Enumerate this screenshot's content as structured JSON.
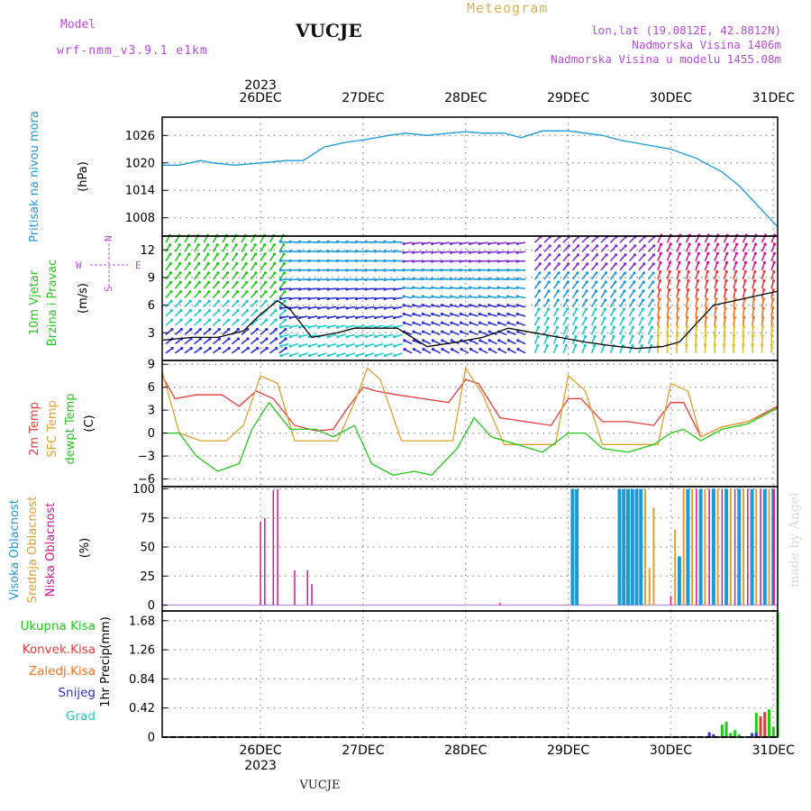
{
  "header": {
    "model_label": "Model",
    "model_name": "wrf-nmm_v3.9.1  e1km",
    "station": "VUCJE",
    "meteogram": "Meteogram",
    "lonlat": "lon,lat (19.0812E, 42.8812N)",
    "elevation": "Nadmorska Visina 1406m",
    "model_elevation": "Nadmorska Visina u modelu 1455.08m"
  },
  "footer": {
    "station": "VUCJE",
    "watermark": "made by Angel"
  },
  "colors": {
    "pressure": "#1c9ad8",
    "temp2m": "#e83a3a",
    "sfc": "#e0a030",
    "dewpt": "#22c81a",
    "high_cloud": "#1c9ad8",
    "mid_cloud": "#e0a030",
    "low_cloud": "#d01890",
    "total_precip": "#22c81a",
    "conv_precip": "#e83a3a",
    "frz_precip": "#f07020",
    "snow": "#3030d0",
    "hail": "#20c8c8"
  },
  "chart_data": {
    "type": "meteogram",
    "year": "2023",
    "time_axis": {
      "start": "2023-12-25T13:00",
      "end": "2023-12-31T13:00",
      "date_labels": [
        "26DEC",
        "27DEC",
        "28DEC",
        "29DEC",
        "30DEC",
        "31DEC"
      ]
    },
    "panels": [
      {
        "id": "pressure",
        "ylabel": "Pritisak na nivou mora",
        "unit": "(hPa)",
        "ylim": [
          1004,
          1030
        ],
        "ticks": [
          1008,
          1014,
          1020,
          1026
        ],
        "series": [
          {
            "name": "Pritisak",
            "type": "line",
            "x": [
              "2023-12-25T13:00",
              "2023-12-25T17:00",
              "2023-12-25T22:00",
              "2023-12-26T01:00",
              "2023-12-26T06:00",
              "2023-12-26T12:00",
              "2023-12-26T18:00",
              "2023-12-26T22:00",
              "2023-12-27T03:00",
              "2023-12-27T08:00",
              "2023-12-27T12:00",
              "2023-12-27T18:00",
              "2023-12-27T22:00",
              "2023-12-28T03:00",
              "2023-12-28T08:00",
              "2023-12-28T12:00",
              "2023-12-28T16:00",
              "2023-12-28T21:00",
              "2023-12-29T01:00",
              "2023-12-29T06:00",
              "2023-12-29T12:00",
              "2023-12-29T16:00",
              "2023-12-29T20:00",
              "2023-12-30T00:00",
              "2023-12-30T06:00",
              "2023-12-30T12:00",
              "2023-12-30T18:00",
              "2023-12-31T00:00",
              "2023-12-31T04:00",
              "2023-12-31T08:00",
              "2023-12-31T13:00"
            ],
            "values": [
              1019.5,
              1019.5,
              1020.5,
              1020.0,
              1019.5,
              1020.0,
              1020.5,
              1020.5,
              1023.5,
              1024.5,
              1025.0,
              1026.0,
              1026.5,
              1026.0,
              1026.5,
              1026.8,
              1026.5,
              1026.5,
              1025.5,
              1027.0,
              1027.0,
              1026.5,
              1026.0,
              1025.0,
              1024.0,
              1023.0,
              1021.0,
              1018.0,
              1015.0,
              1011.0,
              1006.0
            ]
          }
        ]
      },
      {
        "id": "wind",
        "ylabel": "10m Vjetar Brzina i Pravac",
        "unit": "(m/s)",
        "ylim": [
          0,
          13.5
        ],
        "ticks": [
          3,
          6,
          9,
          12
        ],
        "compass": {
          "n": "N",
          "s": "S",
          "e": "E",
          "w": "W"
        },
        "series": [
          {
            "name": "Brzina",
            "type": "line",
            "x": [
              "2023-12-25T13:00",
              "2023-12-25T20:00",
              "2023-12-26T02:00",
              "2023-12-26T08:00",
              "2023-12-26T12:00",
              "2023-12-26T16:00",
              "2023-12-26T19:00",
              "2023-12-27T00:00",
              "2023-12-27T06:00",
              "2023-12-27T10:00",
              "2023-12-27T14:00",
              "2023-12-27T20:00",
              "2023-12-28T03:00",
              "2023-12-28T10:00",
              "2023-12-28T16:00",
              "2023-12-28T22:00",
              "2023-12-29T04:00",
              "2023-12-29T10:00",
              "2023-12-29T16:00",
              "2023-12-29T22:00",
              "2023-12-30T04:00",
              "2023-12-30T10:00",
              "2023-12-30T14:00",
              "2023-12-30T18:00",
              "2023-12-30T22:00",
              "2023-12-31T03:00",
              "2023-12-31T08:00",
              "2023-12-31T13:00"
            ],
            "values": [
              2.2,
              2.5,
              2.5,
              3.2,
              5.0,
              6.5,
              5.5,
              2.5,
              3.0,
              3.5,
              3.5,
              3.5,
              1.5,
              2.0,
              2.5,
              3.5,
              3.0,
              2.5,
              2.0,
              1.6,
              1.3,
              1.5,
              2.0,
              4.0,
              6.0,
              6.5,
              7.0,
              7.5
            ]
          }
        ]
      },
      {
        "id": "temperature",
        "ylabel": "2m Temp / SFC Temp / dewpt Temp",
        "labels": [
          "2m Temp",
          "SFC Temp",
          "dewpt Temp"
        ],
        "unit": "(C)",
        "ylim": [
          -7,
          9.5
        ],
        "ticks": [
          -6,
          -3,
          0,
          3,
          6,
          9
        ],
        "series": [
          {
            "name": "2m Temp",
            "type": "line",
            "x": [
              "2023-12-25T13:00",
              "2023-12-25T16:00",
              "2023-12-25T21:00",
              "2023-12-26T03:00",
              "2023-12-26T07:00",
              "2023-12-26T11:00",
              "2023-12-26T15:00",
              "2023-12-26T20:00",
              "2023-12-27T01:00",
              "2023-12-27T05:00",
              "2023-12-27T08:00",
              "2023-12-27T12:00",
              "2023-12-27T15:00",
              "2023-12-27T20:00",
              "2023-12-28T02:00",
              "2023-12-28T08:00",
              "2023-12-28T12:00",
              "2023-12-28T15:00",
              "2023-12-28T20:00",
              "2023-12-29T02:00",
              "2023-12-29T08:00",
              "2023-12-29T12:00",
              "2023-12-29T15:00",
              "2023-12-29T20:00",
              "2023-12-30T02:00",
              "2023-12-30T08:00",
              "2023-12-30T12:00",
              "2023-12-30T15:00",
              "2023-12-30T19:00",
              "2023-12-31T00:00",
              "2023-12-31T06:00",
              "2023-12-31T13:00"
            ],
            "values": [
              7.5,
              4.5,
              5.0,
              5.0,
              3.5,
              5.5,
              4.5,
              1.0,
              0.3,
              0.5,
              3.0,
              6.0,
              5.5,
              5.0,
              4.5,
              4.0,
              7.0,
              6.5,
              2.0,
              1.5,
              1.0,
              4.5,
              4.5,
              1.5,
              1.5,
              1.0,
              4.0,
              4.0,
              -0.5,
              0.8,
              1.5,
              3.5
            ]
          },
          {
            "name": "SFC Temp",
            "type": "line",
            "x": [
              "2023-12-25T13:00",
              "2023-12-25T17:00",
              "2023-12-25T22:00",
              "2023-12-26T04:00",
              "2023-12-26T08:00",
              "2023-12-26T12:00",
              "2023-12-26T16:00",
              "2023-12-26T20:00",
              "2023-12-27T02:00",
              "2023-12-27T06:00",
              "2023-12-27T10:00",
              "2023-12-27T13:00",
              "2023-12-27T16:00",
              "2023-12-27T21:00",
              "2023-12-28T04:00",
              "2023-12-28T09:00",
              "2023-12-28T12:00",
              "2023-12-28T16:00",
              "2023-12-28T21:00",
              "2023-12-29T04:00",
              "2023-12-29T09:00",
              "2023-12-29T12:00",
              "2023-12-29T16:00",
              "2023-12-29T20:00",
              "2023-12-30T04:00",
              "2023-12-30T09:00",
              "2023-12-30T12:00",
              "2023-12-30T16:00",
              "2023-12-30T19:00",
              "2023-12-31T00:00",
              "2023-12-31T06:00",
              "2023-12-31T13:00"
            ],
            "values": [
              8.0,
              0.0,
              -1.0,
              -1.0,
              1.0,
              7.5,
              6.5,
              -1.0,
              -1.0,
              -1.0,
              4.0,
              8.5,
              7.0,
              -1.0,
              -1.0,
              -1.0,
              8.5,
              5.0,
              -1.5,
              -1.5,
              -1.5,
              7.5,
              5.5,
              -1.5,
              -1.5,
              -1.5,
              6.5,
              5.5,
              -0.5,
              0.8,
              1.5,
              3.2
            ]
          },
          {
            "name": "dewpt Temp",
            "type": "line",
            "x": [
              "2023-12-25T13:00",
              "2023-12-25T17:00",
              "2023-12-25T21:00",
              "2023-12-26T02:00",
              "2023-12-26T07:00",
              "2023-12-26T10:00",
              "2023-12-26T14:00",
              "2023-12-26T19:00",
              "2023-12-27T01:00",
              "2023-12-27T05:00",
              "2023-12-27T10:00",
              "2023-12-27T14:00",
              "2023-12-27T19:00",
              "2023-12-28T00:00",
              "2023-12-28T04:00",
              "2023-12-28T10:00",
              "2023-12-28T14:00",
              "2023-12-28T18:00",
              "2023-12-29T00:00",
              "2023-12-29T06:00",
              "2023-12-29T12:00",
              "2023-12-29T16:00",
              "2023-12-29T20:00",
              "2023-12-30T02:00",
              "2023-12-30T08:00",
              "2023-12-30T12:00",
              "2023-12-30T15:00",
              "2023-12-30T19:00",
              "2023-12-31T00:00",
              "2023-12-31T06:00",
              "2023-12-31T13:00"
            ],
            "values": [
              0.0,
              0.0,
              -3.0,
              -5.0,
              -4.0,
              0.5,
              4.0,
              0.5,
              0.5,
              -0.5,
              1.0,
              -4.0,
              -5.5,
              -5.0,
              -5.5,
              -2.0,
              2.0,
              -0.5,
              -1.5,
              -2.5,
              0.0,
              0.0,
              -2.0,
              -2.5,
              -1.5,
              0.0,
              0.5,
              -1.0,
              0.5,
              1.2,
              3.3
            ]
          }
        ]
      },
      {
        "id": "clouds",
        "ylabel": "Visoka Oblacnost / Srednja Oblacnost / Niska Oblacnost",
        "labels": [
          "Visoka Oblacnost",
          "Srednja Oblacnost",
          "Niska Oblacnost"
        ],
        "unit": "(%)",
        "ylim": [
          -5,
          102
        ],
        "ticks": [
          0,
          25,
          50,
          75,
          100
        ],
        "series": [
          {
            "name": "Visoka Oblacnost",
            "type": "bar",
            "x": [
              "2023-12-29T13:00",
              "2023-12-29T14:00",
              "2023-12-30T00:00",
              "2023-12-30T01:00",
              "2023-12-30T02:00",
              "2023-12-30T03:00",
              "2023-12-30T04:00",
              "2023-12-30T05:00",
              "2023-12-30T14:00",
              "2023-12-30T16:00",
              "2023-12-30T19:00",
              "2023-12-30T22:00",
              "2023-12-31T01:00",
              "2023-12-31T04:00",
              "2023-12-31T07:00",
              "2023-12-31T10:00",
              "2023-12-31T12:00"
            ],
            "values": [
              100,
              100,
              100,
              100,
              100,
              100,
              100,
              100,
              42,
              100,
              100,
              100,
              100,
              100,
              100,
              100,
              100
            ]
          },
          {
            "name": "Srednja Oblacnost",
            "type": "bar",
            "x": [
              "2023-12-30T06:00",
              "2023-12-30T07:00",
              "2023-12-30T08:00",
              "2023-12-30T13:00",
              "2023-12-30T15:00",
              "2023-12-30T17:00",
              "2023-12-30T20:00",
              "2023-12-30T23:00",
              "2023-12-31T02:00",
              "2023-12-31T05:00",
              "2023-12-31T08:00",
              "2023-12-31T11:00"
            ],
            "values": [
              100,
              32,
              84,
              65,
              100,
              100,
              100,
              100,
              100,
              100,
              100,
              100
            ]
          },
          {
            "name": "Niska Oblacnost",
            "type": "bar",
            "x": [
              "2023-12-26T12:00",
              "2023-12-26T13:00",
              "2023-12-26T15:00",
              "2023-12-26T16:00",
              "2023-12-26T20:00",
              "2023-12-26T23:00",
              "2023-12-27T00:00",
              "2023-12-28T20:00",
              "2023-12-30T12:00",
              "2023-12-30T18:00",
              "2023-12-30T21:00",
              "2023-12-31T00:00",
              "2023-12-31T03:00",
              "2023-12-31T06:00",
              "2023-12-31T09:00",
              "2023-12-31T12:00"
            ],
            "values": [
              72,
              75,
              99,
              100,
              30,
              30,
              18,
              2,
              8,
              100,
              100,
              100,
              100,
              100,
              100,
              100
            ]
          }
        ]
      },
      {
        "id": "precip",
        "ylabel": "1hr Precip",
        "unit": "(mm)",
        "ylim": [
          0,
          1.82
        ],
        "ticks": [
          0,
          0.42,
          0.84,
          1.26,
          1.68
        ],
        "legend": [
          "Ukupna Kisa",
          "Konvek.Kisa",
          "Zaledj.Kisa",
          "Snijeg",
          "Grad"
        ],
        "series": [
          {
            "name": "Ukupna Kisa",
            "type": "bar",
            "x": [
              "2023-12-31T00:00",
              "2023-12-31T01:00",
              "2023-12-31T02:00",
              "2023-12-31T03:00",
              "2023-12-31T04:00",
              "2023-12-31T07:00",
              "2023-12-31T08:00",
              "2023-12-31T09:00",
              "2023-12-31T10:00",
              "2023-12-31T11:00",
              "2023-12-31T12:00",
              "2023-12-31T13:00"
            ],
            "values": [
              0.18,
              0.22,
              0.06,
              0.1,
              0.04,
              0.06,
              0.35,
              0.3,
              0.36,
              0.4,
              0.15,
              1.8
            ]
          },
          {
            "name": "Konvek.Kisa",
            "type": "bar",
            "x": [
              "2023-12-31T09:00",
              "2023-12-31T10:00"
            ],
            "values": [
              0.3,
              0.36
            ]
          },
          {
            "name": "Snijeg",
            "type": "bar",
            "x": [
              "2023-12-30T21:00",
              "2023-12-30T22:00",
              "2023-12-31T07:00",
              "2023-12-31T08:00"
            ],
            "values": [
              0.07,
              0.04,
              0.05,
              0.06
            ]
          }
        ]
      }
    ]
  }
}
